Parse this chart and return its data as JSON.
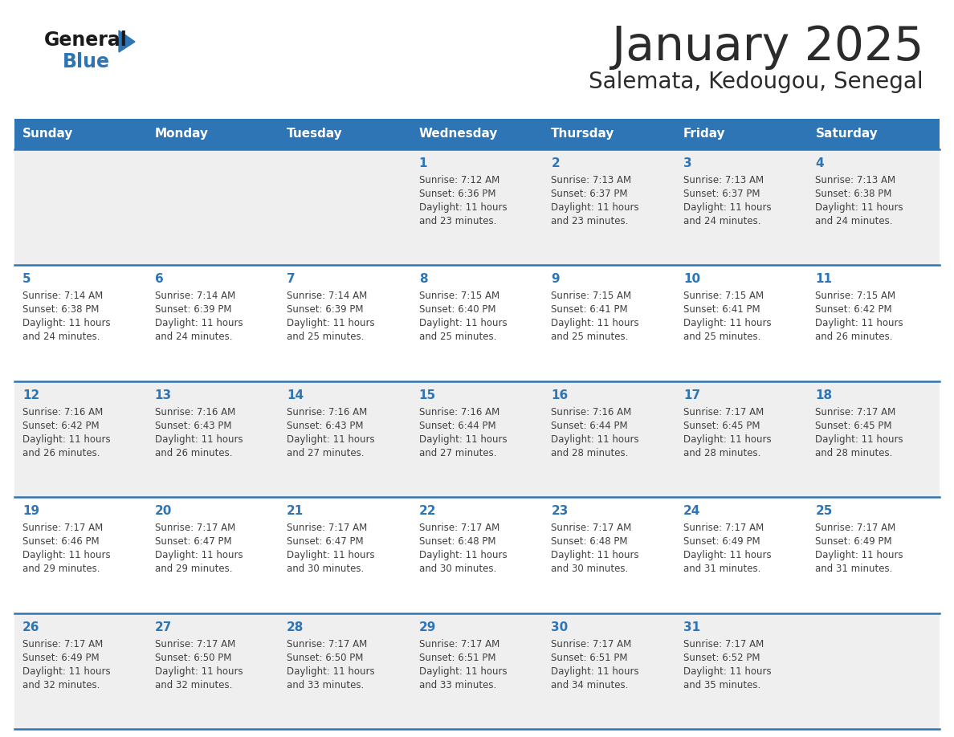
{
  "title": "January 2025",
  "subtitle": "Salemata, Kedougou, Senegal",
  "header_color": "#2E75B6",
  "header_text_color": "#FFFFFF",
  "day_names": [
    "Sunday",
    "Monday",
    "Tuesday",
    "Wednesday",
    "Thursday",
    "Friday",
    "Saturday"
  ],
  "bg_color": "#FFFFFF",
  "cell_bg_even": "#EFEFEF",
  "cell_bg_odd": "#FFFFFF",
  "border_color": "#2E75B6",
  "text_color": "#404040",
  "number_color": "#2E75B6",
  "logo_color1": "#1A1A1A",
  "logo_color2": "#2E75B6",
  "weeks": [
    [
      {
        "date": "",
        "sunrise": "",
        "sunset": "",
        "daylight_h": "",
        "daylight_m": ""
      },
      {
        "date": "",
        "sunrise": "",
        "sunset": "",
        "daylight_h": "",
        "daylight_m": ""
      },
      {
        "date": "",
        "sunrise": "",
        "sunset": "",
        "daylight_h": "",
        "daylight_m": ""
      },
      {
        "date": "1",
        "sunrise": "7:12 AM",
        "sunset": "6:36 PM",
        "daylight_h": "11 hours",
        "daylight_m": "23 minutes."
      },
      {
        "date": "2",
        "sunrise": "7:13 AM",
        "sunset": "6:37 PM",
        "daylight_h": "11 hours",
        "daylight_m": "23 minutes."
      },
      {
        "date": "3",
        "sunrise": "7:13 AM",
        "sunset": "6:37 PM",
        "daylight_h": "11 hours",
        "daylight_m": "24 minutes."
      },
      {
        "date": "4",
        "sunrise": "7:13 AM",
        "sunset": "6:38 PM",
        "daylight_h": "11 hours",
        "daylight_m": "24 minutes."
      }
    ],
    [
      {
        "date": "5",
        "sunrise": "7:14 AM",
        "sunset": "6:38 PM",
        "daylight_h": "11 hours",
        "daylight_m": "24 minutes."
      },
      {
        "date": "6",
        "sunrise": "7:14 AM",
        "sunset": "6:39 PM",
        "daylight_h": "11 hours",
        "daylight_m": "24 minutes."
      },
      {
        "date": "7",
        "sunrise": "7:14 AM",
        "sunset": "6:39 PM",
        "daylight_h": "11 hours",
        "daylight_m": "25 minutes."
      },
      {
        "date": "8",
        "sunrise": "7:15 AM",
        "sunset": "6:40 PM",
        "daylight_h": "11 hours",
        "daylight_m": "25 minutes."
      },
      {
        "date": "9",
        "sunrise": "7:15 AM",
        "sunset": "6:41 PM",
        "daylight_h": "11 hours",
        "daylight_m": "25 minutes."
      },
      {
        "date": "10",
        "sunrise": "7:15 AM",
        "sunset": "6:41 PM",
        "daylight_h": "11 hours",
        "daylight_m": "25 minutes."
      },
      {
        "date": "11",
        "sunrise": "7:15 AM",
        "sunset": "6:42 PM",
        "daylight_h": "11 hours",
        "daylight_m": "26 minutes."
      }
    ],
    [
      {
        "date": "12",
        "sunrise": "7:16 AM",
        "sunset": "6:42 PM",
        "daylight_h": "11 hours",
        "daylight_m": "26 minutes."
      },
      {
        "date": "13",
        "sunrise": "7:16 AM",
        "sunset": "6:43 PM",
        "daylight_h": "11 hours",
        "daylight_m": "26 minutes."
      },
      {
        "date": "14",
        "sunrise": "7:16 AM",
        "sunset": "6:43 PM",
        "daylight_h": "11 hours",
        "daylight_m": "27 minutes."
      },
      {
        "date": "15",
        "sunrise": "7:16 AM",
        "sunset": "6:44 PM",
        "daylight_h": "11 hours",
        "daylight_m": "27 minutes."
      },
      {
        "date": "16",
        "sunrise": "7:16 AM",
        "sunset": "6:44 PM",
        "daylight_h": "11 hours",
        "daylight_m": "28 minutes."
      },
      {
        "date": "17",
        "sunrise": "7:17 AM",
        "sunset": "6:45 PM",
        "daylight_h": "11 hours",
        "daylight_m": "28 minutes."
      },
      {
        "date": "18",
        "sunrise": "7:17 AM",
        "sunset": "6:45 PM",
        "daylight_h": "11 hours",
        "daylight_m": "28 minutes."
      }
    ],
    [
      {
        "date": "19",
        "sunrise": "7:17 AM",
        "sunset": "6:46 PM",
        "daylight_h": "11 hours",
        "daylight_m": "29 minutes."
      },
      {
        "date": "20",
        "sunrise": "7:17 AM",
        "sunset": "6:47 PM",
        "daylight_h": "11 hours",
        "daylight_m": "29 minutes."
      },
      {
        "date": "21",
        "sunrise": "7:17 AM",
        "sunset": "6:47 PM",
        "daylight_h": "11 hours",
        "daylight_m": "30 minutes."
      },
      {
        "date": "22",
        "sunrise": "7:17 AM",
        "sunset": "6:48 PM",
        "daylight_h": "11 hours",
        "daylight_m": "30 minutes."
      },
      {
        "date": "23",
        "sunrise": "7:17 AM",
        "sunset": "6:48 PM",
        "daylight_h": "11 hours",
        "daylight_m": "30 minutes."
      },
      {
        "date": "24",
        "sunrise": "7:17 AM",
        "sunset": "6:49 PM",
        "daylight_h": "11 hours",
        "daylight_m": "31 minutes."
      },
      {
        "date": "25",
        "sunrise": "7:17 AM",
        "sunset": "6:49 PM",
        "daylight_h": "11 hours",
        "daylight_m": "31 minutes."
      }
    ],
    [
      {
        "date": "26",
        "sunrise": "7:17 AM",
        "sunset": "6:49 PM",
        "daylight_h": "11 hours",
        "daylight_m": "32 minutes."
      },
      {
        "date": "27",
        "sunrise": "7:17 AM",
        "sunset": "6:50 PM",
        "daylight_h": "11 hours",
        "daylight_m": "32 minutes."
      },
      {
        "date": "28",
        "sunrise": "7:17 AM",
        "sunset": "6:50 PM",
        "daylight_h": "11 hours",
        "daylight_m": "33 minutes."
      },
      {
        "date": "29",
        "sunrise": "7:17 AM",
        "sunset": "6:51 PM",
        "daylight_h": "11 hours",
        "daylight_m": "33 minutes."
      },
      {
        "date": "30",
        "sunrise": "7:17 AM",
        "sunset": "6:51 PM",
        "daylight_h": "11 hours",
        "daylight_m": "34 minutes."
      },
      {
        "date": "31",
        "sunrise": "7:17 AM",
        "sunset": "6:52 PM",
        "daylight_h": "11 hours",
        "daylight_m": "35 minutes."
      },
      {
        "date": "",
        "sunrise": "",
        "sunset": "",
        "daylight_h": "",
        "daylight_m": ""
      }
    ]
  ]
}
